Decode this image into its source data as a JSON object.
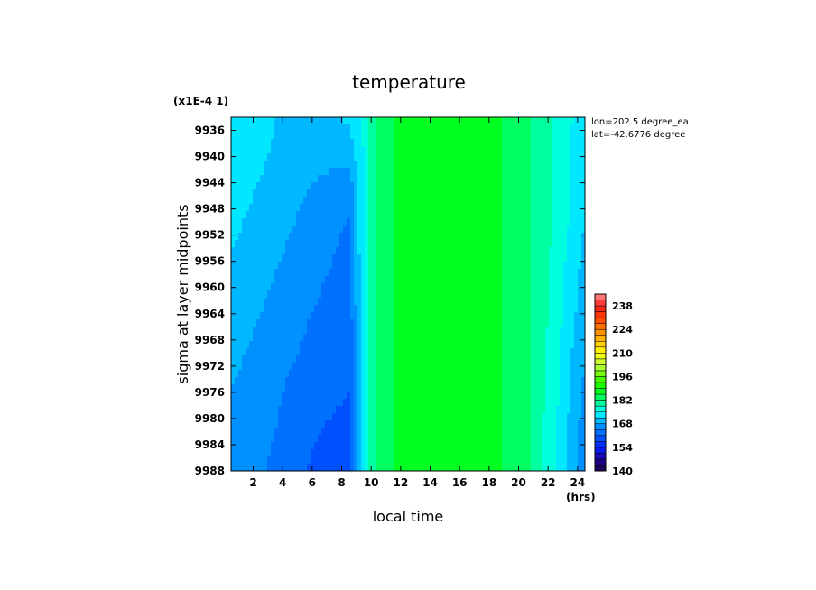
{
  "chart_data": {
    "type": "heatmap",
    "title": "temperature",
    "xlabel": "local time",
    "ylabel": "sigma at layer midpoints",
    "x_unit": "(hrs)",
    "y_scale_note": "(x1E-4 1)",
    "info_lines": [
      "lon=202.5 degree_ea",
      "lat=-42.6776 degree"
    ],
    "xlim": [
      0.5,
      24.5
    ],
    "ylim": [
      9934,
      9988
    ],
    "y_inverted": true,
    "x_ticks": [
      "2",
      "4",
      "6",
      "8",
      "10",
      "12",
      "14",
      "16",
      "18",
      "20",
      "22",
      "24"
    ],
    "y_ticks": [
      "9936",
      "9940",
      "9944",
      "9948",
      "9952",
      "9956",
      "9960",
      "9964",
      "9968",
      "9972",
      "9976",
      "9980",
      "9984",
      "9988"
    ],
    "x": [
      0.5,
      2.5,
      4.5,
      6.5,
      8.5,
      9.5,
      10.5,
      12.5,
      14.5,
      16.5,
      18.5,
      20.5,
      22.5,
      24.5
    ],
    "y": [
      9934,
      9940,
      9946,
      9952,
      9958,
      9964,
      9970,
      9976,
      9982,
      9988
    ],
    "z": [
      [
        175,
        173,
        170,
        171,
        172,
        176,
        184,
        187,
        188,
        188,
        186,
        183,
        178,
        173
      ],
      [
        174,
        172,
        170,
        169,
        169,
        175,
        184,
        187,
        188,
        188,
        186,
        183,
        178,
        172
      ],
      [
        173,
        171,
        169,
        167,
        165,
        175,
        184,
        187,
        188,
        188,
        186,
        183,
        178,
        172
      ],
      [
        172,
        170,
        168,
        166,
        164,
        175,
        184,
        187,
        188,
        188,
        186,
        183,
        178,
        171
      ],
      [
        171,
        169,
        167,
        165,
        163,
        175,
        184,
        187,
        188,
        188,
        186,
        183,
        177,
        170
      ],
      [
        170,
        168,
        166,
        164,
        162,
        175,
        184,
        187,
        188,
        188,
        186,
        183,
        177,
        169
      ],
      [
        169,
        167,
        165,
        163,
        161,
        175,
        184,
        187,
        188,
        188,
        186,
        183,
        176,
        168
      ],
      [
        168,
        166,
        164,
        162,
        161,
        175,
        184,
        187,
        188,
        188,
        186,
        183,
        176,
        167
      ],
      [
        168,
        166,
        163,
        161,
        160,
        175,
        184,
        187,
        188,
        188,
        186,
        183,
        175,
        166
      ],
      [
        167,
        165,
        162,
        160,
        159,
        175,
        184,
        187,
        188,
        188,
        186,
        183,
        175,
        165
      ]
    ],
    "colorbar": {
      "ticks": [
        140,
        154,
        168,
        182,
        196,
        210,
        224,
        238
      ],
      "min": 140,
      "max": 245,
      "step": 3.5,
      "stops": [
        [
          140,
          "#1a0040"
        ],
        [
          147,
          "#2000a0"
        ],
        [
          154,
          "#0020ff"
        ],
        [
          161,
          "#0060ff"
        ],
        [
          168,
          "#00a0ff"
        ],
        [
          175,
          "#00ffff"
        ],
        [
          182,
          "#00ff80"
        ],
        [
          189,
          "#00ff00"
        ],
        [
          196,
          "#60ff00"
        ],
        [
          203,
          "#c0ff40"
        ],
        [
          210,
          "#ffff00"
        ],
        [
          217,
          "#ffc000"
        ],
        [
          224,
          "#ff8000"
        ],
        [
          231,
          "#ff4000"
        ],
        [
          238,
          "#ff2020"
        ],
        [
          245,
          "#ff9090"
        ]
      ]
    }
  }
}
